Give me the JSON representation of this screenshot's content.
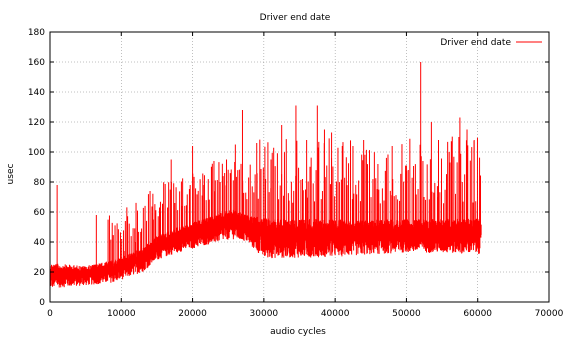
{
  "chart_data": {
    "type": "line",
    "title": "Driver end date",
    "xlabel": "audio cycles",
    "ylabel": "usec",
    "xlim": [
      0,
      70000
    ],
    "ylim": [
      0,
      180
    ],
    "xticks": [
      0,
      10000,
      20000,
      30000,
      40000,
      50000,
      60000,
      70000
    ],
    "yticks": [
      0,
      20,
      40,
      60,
      80,
      100,
      120,
      140,
      160,
      180
    ],
    "grid": true,
    "legend_position": "top-right",
    "series": [
      {
        "name": "Driver end date",
        "color": "#ff0000",
        "points_approx": 60500,
        "baseline": [
          {
            "x": 0,
            "low": 9,
            "high": 26
          },
          {
            "x": 5000,
            "low": 11,
            "high": 24
          },
          {
            "x": 9000,
            "low": 13,
            "high": 28
          },
          {
            "x": 13000,
            "low": 20,
            "high": 36
          },
          {
            "x": 15000,
            "low": 28,
            "high": 44
          },
          {
            "x": 18000,
            "low": 33,
            "high": 50
          },
          {
            "x": 22000,
            "low": 38,
            "high": 56
          },
          {
            "x": 25500,
            "low": 42,
            "high": 62
          },
          {
            "x": 27500,
            "low": 40,
            "high": 58
          },
          {
            "x": 30000,
            "low": 29,
            "high": 56
          },
          {
            "x": 40000,
            "low": 30,
            "high": 55
          },
          {
            "x": 50000,
            "low": 33,
            "high": 55
          },
          {
            "x": 60500,
            "low": 32,
            "high": 56
          }
        ],
        "spikes": [
          {
            "x": 1000,
            "y": 78
          },
          {
            "x": 6500,
            "y": 58
          },
          {
            "x": 10500,
            "y": 34
          },
          {
            "x": 12000,
            "y": 40
          },
          {
            "x": 14500,
            "y": 55
          },
          {
            "x": 15500,
            "y": 60
          },
          {
            "x": 17000,
            "y": 95
          },
          {
            "x": 18500,
            "y": 64
          },
          {
            "x": 20000,
            "y": 104
          },
          {
            "x": 21500,
            "y": 78
          },
          {
            "x": 23000,
            "y": 94
          },
          {
            "x": 24500,
            "y": 86
          },
          {
            "x": 26000,
            "y": 105
          },
          {
            "x": 27000,
            "y": 128
          },
          {
            "x": 29000,
            "y": 106
          },
          {
            "x": 31000,
            "y": 95
          },
          {
            "x": 32500,
            "y": 118
          },
          {
            "x": 34500,
            "y": 131
          },
          {
            "x": 36000,
            "y": 108
          },
          {
            "x": 37500,
            "y": 131
          },
          {
            "x": 38500,
            "y": 115
          },
          {
            "x": 39500,
            "y": 113
          },
          {
            "x": 41000,
            "y": 104
          },
          {
            "x": 42500,
            "y": 104
          },
          {
            "x": 44000,
            "y": 108
          },
          {
            "x": 46000,
            "y": 92
          },
          {
            "x": 48000,
            "y": 104
          },
          {
            "x": 50000,
            "y": 91
          },
          {
            "x": 52000,
            "y": 160
          },
          {
            "x": 53500,
            "y": 120
          },
          {
            "x": 54500,
            "y": 108
          },
          {
            "x": 56000,
            "y": 100
          },
          {
            "x": 57500,
            "y": 123
          },
          {
            "x": 58500,
            "y": 115
          },
          {
            "x": 59500,
            "y": 108
          }
        ]
      }
    ]
  }
}
